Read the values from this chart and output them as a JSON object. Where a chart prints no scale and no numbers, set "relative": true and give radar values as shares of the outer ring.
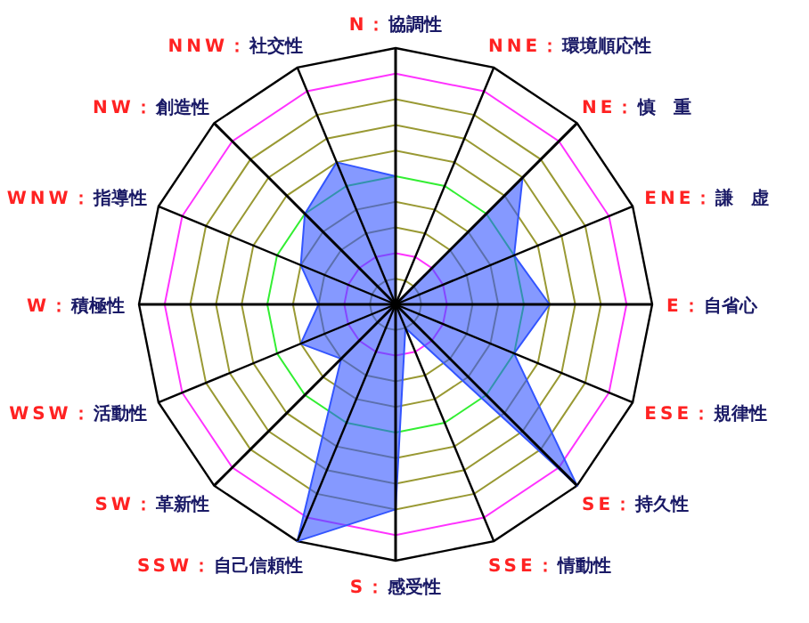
{
  "chart_data": {
    "type": "radar",
    "relative": true,
    "categories": [
      "N：協調性",
      "NNE：環境順応性",
      "NE：慎　重",
      "ENE：謙　虚",
      "E：自省心",
      "ESE：規律性",
      "SE：持久性",
      "SSE：情動性",
      "S：感受性",
      "SSW：自己信頼性",
      "SW：革新性",
      "WSW：活動性",
      "W：積極性",
      "WNW：指導性",
      "NW：創造性",
      "NNW：社交性"
    ],
    "series": [
      {
        "color": "#3355ff",
        "values": [
          0.5,
          0,
          0.7,
          0.5,
          0.6,
          0.5,
          1.0,
          0.1,
          0.8,
          1.0,
          0.3,
          0.4,
          0.3,
          0.4,
          0.5,
          0.6
        ]
      }
    ]
  }
}
